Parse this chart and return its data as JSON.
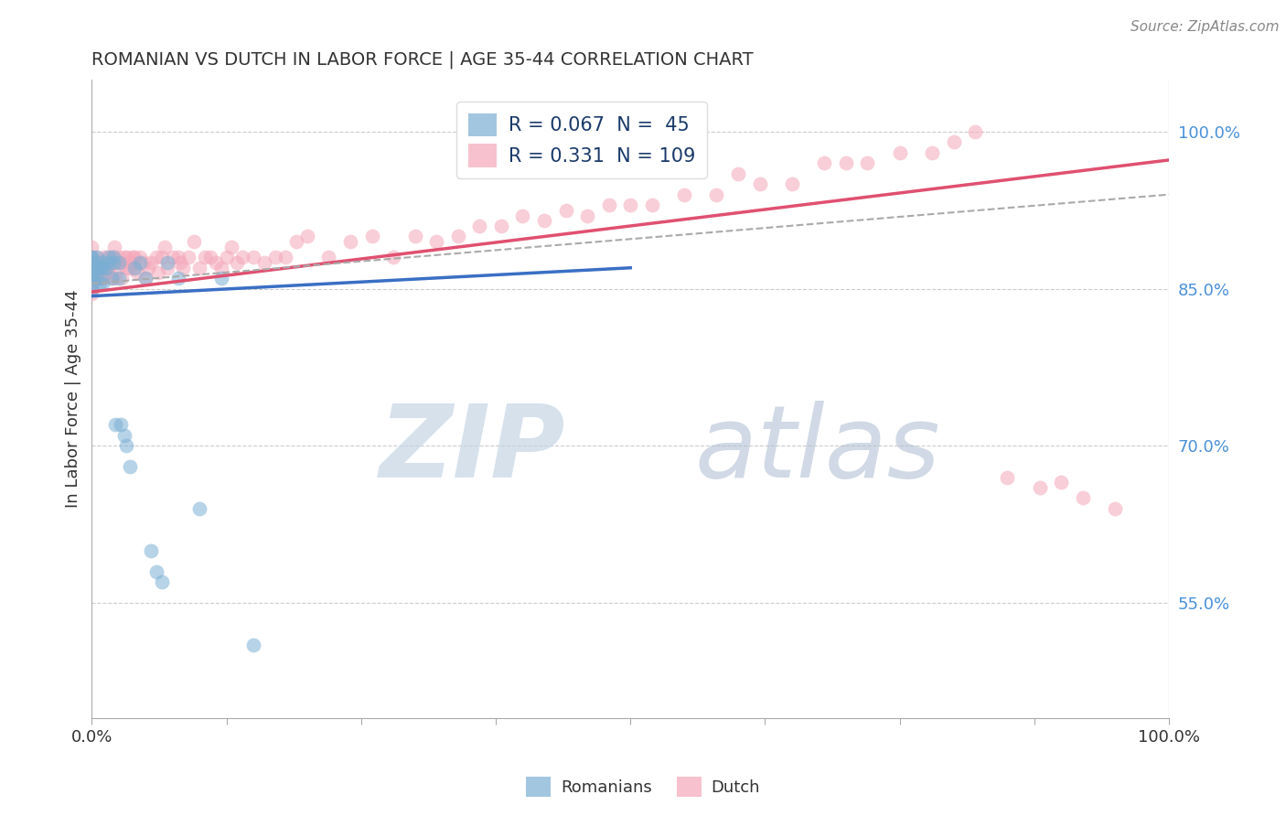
{
  "title": "ROMANIAN VS DUTCH IN LABOR FORCE | AGE 35-44 CORRELATION CHART",
  "source": "Source: ZipAtlas.com",
  "ylabel": "In Labor Force | Age 35-44",
  "ytick_labels": [
    "55.0%",
    "70.0%",
    "85.0%",
    "100.0%"
  ],
  "ytick_values": [
    0.55,
    0.7,
    0.85,
    1.0
  ],
  "xlim": [
    0.0,
    1.0
  ],
  "ylim": [
    0.44,
    1.05
  ],
  "blue_color": "#7bafd4",
  "pink_color": "#f4a7b9",
  "blue_R": 0.067,
  "blue_N": 45,
  "pink_R": 0.331,
  "pink_N": 109,
  "blue_line": {
    "x0": 0.0,
    "y0": 0.843,
    "x1": 0.5,
    "y1": 0.87
  },
  "pink_line": {
    "x0": 0.0,
    "y0": 0.847,
    "x1": 1.0,
    "y1": 0.973
  },
  "dash_line": {
    "x0": 0.0,
    "y0": 0.855,
    "x1": 1.0,
    "y1": 0.94
  },
  "blue_scatter_x": [
    0.0,
    0.0,
    0.0,
    0.0,
    0.0,
    0.0,
    0.0,
    0.0,
    0.0,
    0.0,
    0.003,
    0.003,
    0.004,
    0.005,
    0.006,
    0.007,
    0.007,
    0.008,
    0.01,
    0.01,
    0.011,
    0.013,
    0.015,
    0.016,
    0.018,
    0.02,
    0.02,
    0.022,
    0.025,
    0.025,
    0.027,
    0.03,
    0.032,
    0.035,
    0.04,
    0.045,
    0.05,
    0.055,
    0.06,
    0.065,
    0.07,
    0.08,
    0.1,
    0.12,
    0.15
  ],
  "blue_scatter_y": [
    0.87,
    0.88,
    0.875,
    0.865,
    0.86,
    0.855,
    0.85,
    0.862,
    0.87,
    0.88,
    0.87,
    0.86,
    0.875,
    0.88,
    0.86,
    0.87,
    0.855,
    0.87,
    0.875,
    0.855,
    0.87,
    0.87,
    0.875,
    0.88,
    0.86,
    0.88,
    0.875,
    0.72,
    0.875,
    0.86,
    0.72,
    0.71,
    0.7,
    0.68,
    0.87,
    0.875,
    0.86,
    0.6,
    0.58,
    0.57,
    0.875,
    0.86,
    0.64,
    0.86,
    0.51
  ],
  "pink_scatter_x": [
    0.0,
    0.0,
    0.0,
    0.0,
    0.0,
    0.0,
    0.0,
    0.0,
    0.0,
    0.0,
    0.0,
    0.003,
    0.004,
    0.005,
    0.006,
    0.007,
    0.008,
    0.009,
    0.01,
    0.01,
    0.012,
    0.013,
    0.014,
    0.015,
    0.016,
    0.017,
    0.018,
    0.019,
    0.02,
    0.021,
    0.022,
    0.023,
    0.025,
    0.025,
    0.027,
    0.028,
    0.03,
    0.032,
    0.033,
    0.035,
    0.037,
    0.038,
    0.04,
    0.04,
    0.042,
    0.045,
    0.048,
    0.05,
    0.052,
    0.055,
    0.06,
    0.062,
    0.065,
    0.068,
    0.07,
    0.075,
    0.08,
    0.082,
    0.085,
    0.09,
    0.095,
    0.1,
    0.105,
    0.11,
    0.115,
    0.12,
    0.125,
    0.13,
    0.135,
    0.14,
    0.15,
    0.16,
    0.17,
    0.18,
    0.19,
    0.2,
    0.22,
    0.24,
    0.26,
    0.28,
    0.3,
    0.32,
    0.34,
    0.36,
    0.38,
    0.4,
    0.42,
    0.44,
    0.46,
    0.48,
    0.5,
    0.52,
    0.55,
    0.58,
    0.6,
    0.62,
    0.65,
    0.68,
    0.7,
    0.72,
    0.75,
    0.78,
    0.8,
    0.82,
    0.85,
    0.88,
    0.9,
    0.92,
    0.95
  ],
  "pink_scatter_y": [
    0.87,
    0.86,
    0.875,
    0.865,
    0.88,
    0.855,
    0.85,
    0.89,
    0.845,
    0.875,
    0.86,
    0.87,
    0.88,
    0.86,
    0.875,
    0.87,
    0.86,
    0.875,
    0.87,
    0.86,
    0.88,
    0.865,
    0.88,
    0.87,
    0.865,
    0.875,
    0.86,
    0.88,
    0.88,
    0.89,
    0.86,
    0.875,
    0.87,
    0.88,
    0.875,
    0.86,
    0.88,
    0.87,
    0.88,
    0.87,
    0.875,
    0.88,
    0.88,
    0.87,
    0.865,
    0.88,
    0.875,
    0.86,
    0.87,
    0.875,
    0.88,
    0.865,
    0.88,
    0.89,
    0.87,
    0.88,
    0.88,
    0.875,
    0.87,
    0.88,
    0.895,
    0.87,
    0.88,
    0.88,
    0.875,
    0.87,
    0.88,
    0.89,
    0.875,
    0.88,
    0.88,
    0.875,
    0.88,
    0.88,
    0.895,
    0.9,
    0.88,
    0.895,
    0.9,
    0.88,
    0.9,
    0.895,
    0.9,
    0.91,
    0.91,
    0.92,
    0.915,
    0.925,
    0.92,
    0.93,
    0.93,
    0.93,
    0.94,
    0.94,
    0.96,
    0.95,
    0.95,
    0.97,
    0.97,
    0.97,
    0.98,
    0.98,
    0.99,
    1.0,
    0.67,
    0.66,
    0.665,
    0.65,
    0.64
  ]
}
